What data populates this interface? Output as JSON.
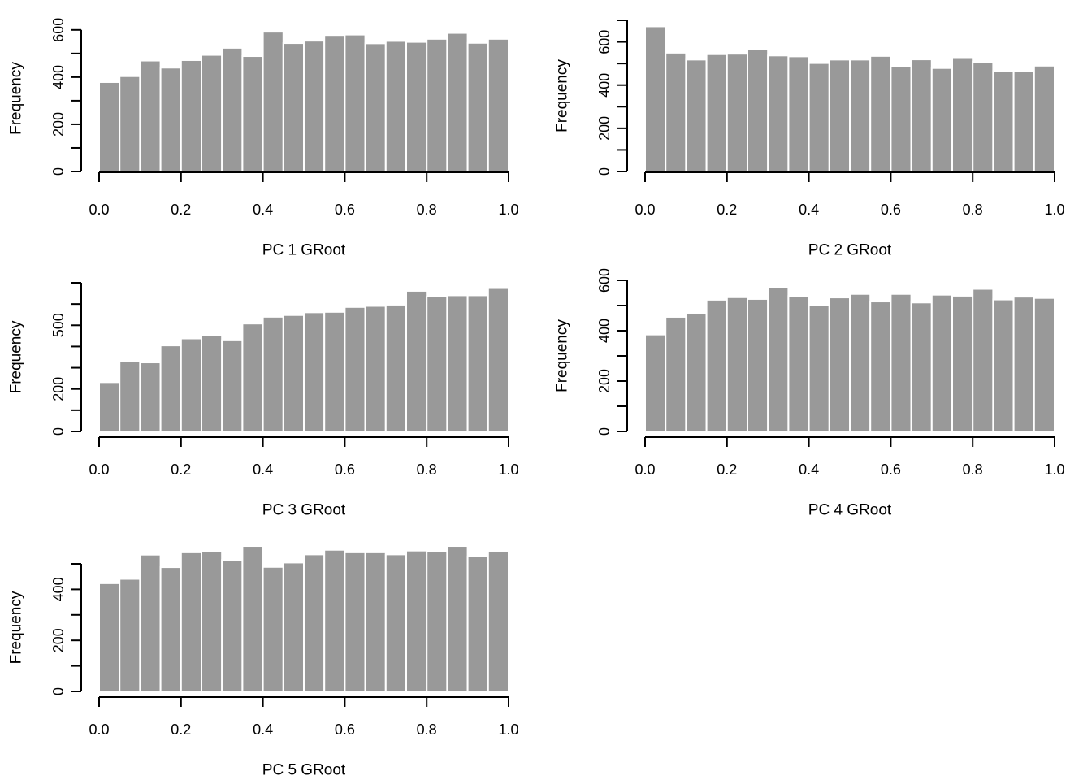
{
  "chart_data": [
    {
      "type": "bar",
      "title": "",
      "xlabel": "PC 1 GRoot",
      "ylabel": "Frequency",
      "bin_edges": [
        0.0,
        0.05,
        0.1,
        0.15,
        0.2,
        0.25,
        0.3,
        0.35,
        0.4,
        0.45,
        0.5,
        0.55,
        0.6,
        0.65,
        0.7,
        0.75,
        0.8,
        0.85,
        0.9,
        0.95,
        1.0
      ],
      "values": [
        379,
        404,
        470,
        440,
        472,
        494,
        524,
        489,
        592,
        544,
        554,
        578,
        580,
        543,
        553,
        549,
        562,
        587,
        545,
        562
      ],
      "xlim": [
        0,
        1
      ],
      "ylim": [
        0,
        620
      ],
      "x_ticks": [
        "0.0",
        "0.2",
        "0.4",
        "0.6",
        "0.8",
        "1.0"
      ],
      "y_ticks": [
        0,
        100,
        200,
        300,
        400,
        500,
        600
      ],
      "y_tick_labels": [
        "0",
        "200",
        "400",
        "600"
      ],
      "bar_color": "#999999"
    },
    {
      "type": "bar",
      "title": "",
      "xlabel": "PC 2 GRoot",
      "ylabel": "Frequency",
      "bin_edges": [
        0.0,
        0.05,
        0.1,
        0.15,
        0.2,
        0.25,
        0.3,
        0.35,
        0.4,
        0.45,
        0.5,
        0.55,
        0.6,
        0.65,
        0.7,
        0.75,
        0.8,
        0.85,
        0.9,
        0.95,
        1.0
      ],
      "values": [
        672,
        550,
        518,
        543,
        545,
        566,
        537,
        533,
        502,
        518,
        518,
        535,
        486,
        519,
        479,
        525,
        508,
        465,
        465,
        490
      ],
      "xlim": [
        0,
        1
      ],
      "ylim": [
        0,
        700
      ],
      "x_ticks": [
        "0.0",
        "0.2",
        "0.4",
        "0.6",
        "0.8",
        "1.0"
      ],
      "y_ticks": [
        0,
        100,
        200,
        300,
        400,
        500,
        600,
        700
      ],
      "y_tick_labels": [
        "0",
        "200",
        "400",
        "600"
      ],
      "bar_color": "#999999"
    },
    {
      "type": "bar",
      "title": "",
      "xlabel": "PC 3 GRoot",
      "ylabel": "Frequency",
      "bin_edges": [
        0.0,
        0.05,
        0.1,
        0.15,
        0.2,
        0.25,
        0.3,
        0.35,
        0.4,
        0.45,
        0.5,
        0.55,
        0.6,
        0.65,
        0.7,
        0.75,
        0.8,
        0.85,
        0.9,
        0.95,
        1.0
      ],
      "values": [
        232,
        330,
        325,
        405,
        438,
        453,
        429,
        508,
        540,
        548,
        561,
        563,
        586,
        591,
        597,
        662,
        635,
        641,
        641,
        675
      ],
      "xlim": [
        0,
        1
      ],
      "ylim": [
        0,
        700
      ],
      "x_ticks": [
        "0.0",
        "0.2",
        "0.4",
        "0.6",
        "0.8",
        "1.0"
      ],
      "y_ticks": [
        0,
        100,
        200,
        300,
        400,
        500,
        600,
        700
      ],
      "y_tick_labels": [
        "0",
        "200",
        "500"
      ],
      "bar_color": "#999999"
    },
    {
      "type": "bar",
      "title": "",
      "xlabel": "PC 4 GRoot",
      "ylabel": "Frequency",
      "bin_edges": [
        0.0,
        0.05,
        0.1,
        0.15,
        0.2,
        0.25,
        0.3,
        0.35,
        0.4,
        0.45,
        0.5,
        0.55,
        0.6,
        0.65,
        0.7,
        0.75,
        0.8,
        0.85,
        0.9,
        0.95,
        1.0
      ],
      "values": [
        385,
        455,
        471,
        523,
        533,
        526,
        573,
        538,
        503,
        532,
        546,
        516,
        546,
        512,
        543,
        539,
        566,
        524,
        535,
        530
      ],
      "xlim": [
        0,
        1
      ],
      "ylim": [
        0,
        600
      ],
      "x_ticks": [
        "0.0",
        "0.2",
        "0.4",
        "0.6",
        "0.8",
        "1.0"
      ],
      "y_ticks": [
        0,
        100,
        200,
        300,
        400,
        500,
        600
      ],
      "y_tick_labels": [
        "0",
        "200",
        "400",
        "600"
      ],
      "bar_color": "#999999"
    },
    {
      "type": "bar",
      "title": "",
      "xlabel": "PC 5 GRoot",
      "ylabel": "Frequency",
      "bin_edges": [
        0.0,
        0.05,
        0.1,
        0.15,
        0.2,
        0.25,
        0.3,
        0.35,
        0.4,
        0.45,
        0.5,
        0.55,
        0.6,
        0.65,
        0.7,
        0.75,
        0.8,
        0.85,
        0.9,
        0.95,
        1.0
      ],
      "values": [
        424,
        441,
        536,
        487,
        545,
        550,
        515,
        570,
        488,
        505,
        537,
        555,
        545,
        545,
        537,
        552,
        550,
        570,
        529,
        551
      ],
      "xlim": [
        0,
        1
      ],
      "ylim": [
        0,
        500
      ],
      "x_ticks": [
        "0.0",
        "0.2",
        "0.4",
        "0.6",
        "0.8",
        "1.0"
      ],
      "y_ticks": [
        0,
        100,
        200,
        300,
        400,
        500
      ],
      "y_tick_labels": [
        "0",
        "200",
        "400"
      ],
      "bar_color": "#999999"
    }
  ]
}
